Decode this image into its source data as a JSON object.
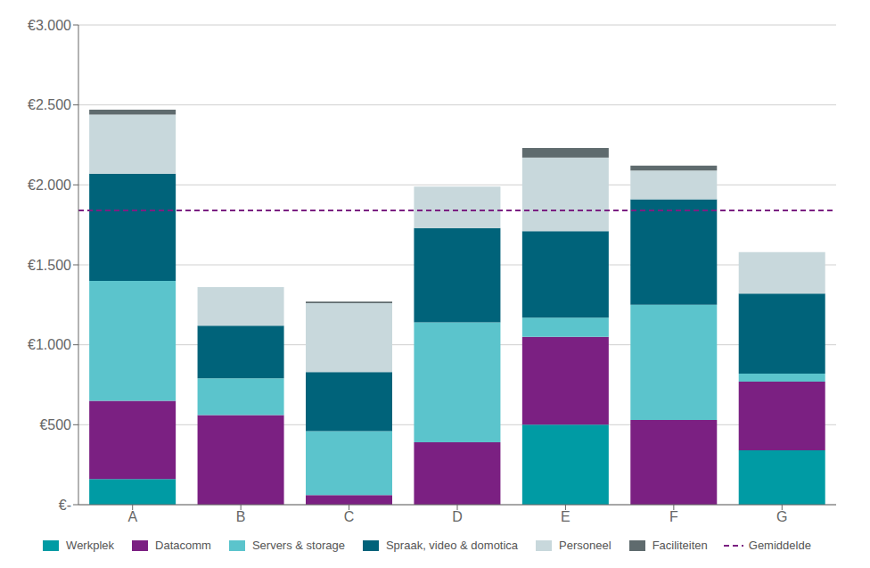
{
  "chart_data": {
    "type": "bar",
    "stacked": true,
    "grid": true,
    "legend": "bottom",
    "categories": [
      "A",
      "B",
      "C",
      "D",
      "E",
      "F",
      "G"
    ],
    "series": [
      {
        "name": "Werkplek",
        "color": "#009BA4",
        "values": [
          160,
          0,
          0,
          0,
          500,
          0,
          340
        ]
      },
      {
        "name": "Datacomm",
        "color": "#7B2082",
        "values": [
          490,
          560,
          60,
          390,
          550,
          530,
          430
        ]
      },
      {
        "name": "Servers & storage",
        "color": "#5BC4CC",
        "values": [
          750,
          230,
          400,
          750,
          120,
          720,
          50
        ]
      },
      {
        "name": "Spraak, video & domotica",
        "color": "#00637A",
        "values": [
          670,
          330,
          370,
          590,
          540,
          660,
          500
        ]
      },
      {
        "name": "Personeel",
        "color": "#C8D8DC",
        "values": [
          370,
          240,
          430,
          260,
          460,
          180,
          260
        ]
      },
      {
        "name": "Faciliteiten",
        "color": "#5F6B6E",
        "values": [
          30,
          0,
          10,
          0,
          60,
          30,
          0
        ]
      }
    ],
    "reference_lines": [
      {
        "name": "Gemiddelde",
        "value": 1840,
        "color": "#7B2082",
        "line_style": "dashed"
      }
    ],
    "ylim": [
      0,
      3000
    ],
    "yticks": [
      {
        "value": 0,
        "label": "€-"
      },
      {
        "value": 500,
        "label": "€500"
      },
      {
        "value": 1000,
        "label": "€1.000"
      },
      {
        "value": 1500,
        "label": "€1.500"
      },
      {
        "value": 2000,
        "label": "€2.000"
      },
      {
        "value": 2500,
        "label": "€2.500"
      },
      {
        "value": 3000,
        "label": "€3.000"
      }
    ]
  }
}
